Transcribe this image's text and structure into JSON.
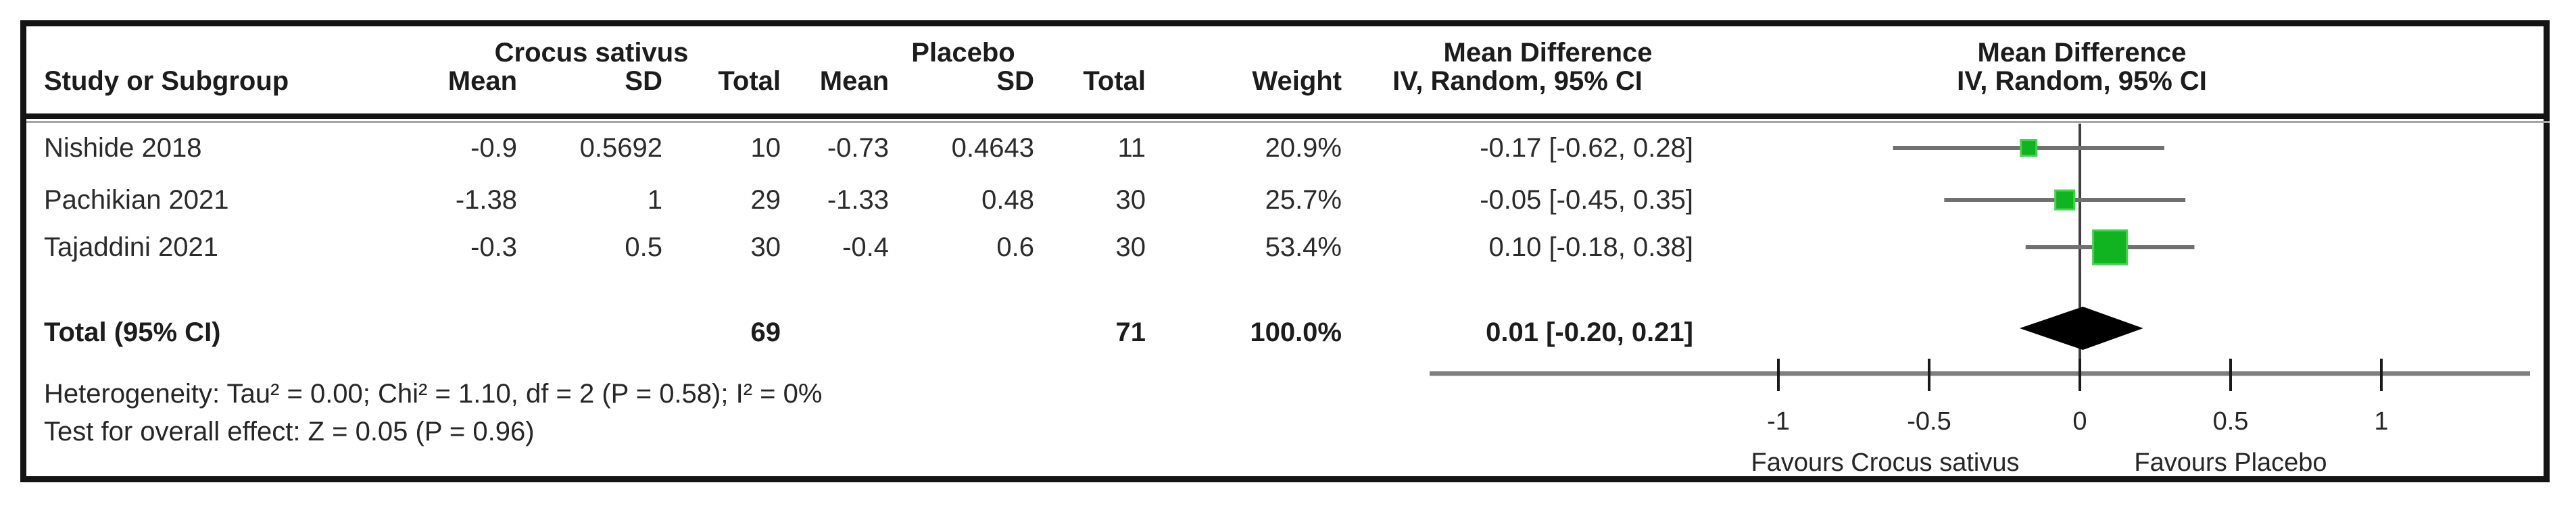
{
  "table": {
    "group_headers": {
      "group1": "Crocus sativus",
      "group2": "Placebo",
      "effect": "Mean Difference",
      "graph": "Mean Difference"
    },
    "col_headers": {
      "study": "Study or Subgroup",
      "mean1": "Mean",
      "sd1": "SD",
      "total1": "Total",
      "mean2": "Mean",
      "sd2": "SD",
      "total2": "Total",
      "weight": "Weight",
      "ci": "IV, Random, 95% CI",
      "graph_ci": "IV, Random, 95% CI"
    },
    "rows": [
      {
        "study": "Nishide 2018",
        "mean1": "-0.9",
        "sd1": "0.5692",
        "total1": "10",
        "mean2": "-0.73",
        "sd2": "0.4643",
        "total2": "11",
        "weight": "20.9%",
        "ci": "-0.17 [-0.62, 0.28]"
      },
      {
        "study": "Pachikian 2021",
        "mean1": "-1.38",
        "sd1": "1",
        "total1": "29",
        "mean2": "-1.33",
        "sd2": "0.48",
        "total2": "30",
        "weight": "25.7%",
        "ci": "-0.05 [-0.45, 0.35]"
      },
      {
        "study": "Tajaddini 2021",
        "mean1": "-0.3",
        "sd1": "0.5",
        "total1": "30",
        "mean2": "-0.4",
        "sd2": "0.6",
        "total2": "30",
        "weight": "53.4%",
        "ci": "0.10 [-0.18, 0.38]"
      }
    ],
    "total_row": {
      "label": "Total (95% CI)",
      "total1": "69",
      "total2": "71",
      "weight": "100.0%",
      "ci": "0.01 [-0.20, 0.21]"
    },
    "footnotes": [
      "Heterogeneity: Tau² = 0.00; Chi² = 1.10, df = 2 (P = 0.58); I² = 0%",
      "Test for overall effect: Z = 0.05 (P = 0.96)"
    ]
  },
  "chart_data": {
    "type": "forest",
    "title": "Mean Difference, IV, Random, 95% CI",
    "studies": [
      {
        "name": "Nishide 2018",
        "md": -0.17,
        "ci_low": -0.62,
        "ci_high": 0.28,
        "weight_pct": 20.9
      },
      {
        "name": "Pachikian 2021",
        "md": -0.05,
        "ci_low": -0.45,
        "ci_high": 0.35,
        "weight_pct": 25.7
      },
      {
        "name": "Tajaddini 2021",
        "md": 0.1,
        "ci_low": -0.18,
        "ci_high": 0.38,
        "weight_pct": 53.4
      }
    ],
    "total": {
      "label": "Total (95% CI)",
      "md": 0.01,
      "ci_low": -0.2,
      "ci_high": 0.21
    },
    "axis": {
      "ticks": [
        -1,
        -0.5,
        0,
        0.5,
        1
      ],
      "tick_labels": [
        "-1",
        "-0.5",
        "0",
        "0.5",
        "1"
      ],
      "grid": false
    },
    "footer_labels": {
      "left": "Favours Crocus sativus",
      "right": "Favours Placebo"
    },
    "layout_hints": {
      "marker_px": [
        23,
        28,
        50
      ],
      "legend_position": "none"
    },
    "colors": {
      "square": "#10b421",
      "square_edge": "#44d44b",
      "ci_line": "#707070",
      "axis_line": "#7f7f7f",
      "zero_line": "#3f3f3f",
      "diamond": "#000000",
      "text": "#262626"
    }
  }
}
